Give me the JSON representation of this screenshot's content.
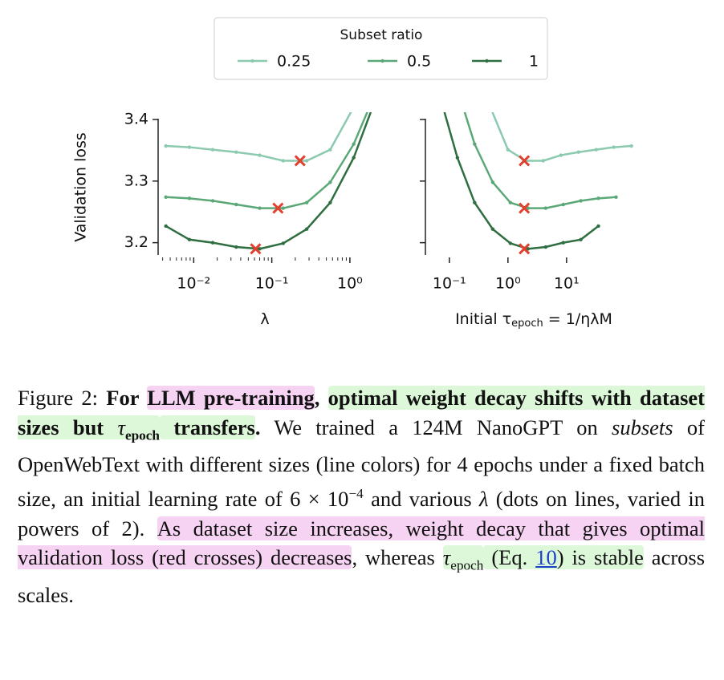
{
  "legend": {
    "title": "Subset ratio"
  },
  "chart_data": [
    {
      "type": "line",
      "ylabel": "Validation loss",
      "xlabel": [
        "λ"
      ],
      "xscale": "log",
      "xlim": [
        0.0035,
        1.9
      ],
      "ylim": [
        3.18,
        3.4
      ],
      "xticks": [
        {
          "value": 0.01,
          "label": "10⁻²"
        },
        {
          "value": 0.1,
          "label": "10⁻¹"
        },
        {
          "value": 1,
          "label": "10⁰"
        }
      ],
      "xticks_minor": [
        0.004,
        0.005,
        0.006,
        0.007,
        0.008,
        0.009,
        0.02,
        0.03,
        0.04,
        0.05,
        0.06,
        0.07,
        0.08,
        0.09,
        0.2,
        0.3,
        0.4,
        0.5,
        0.6,
        0.7,
        0.8,
        0.9
      ],
      "yticks": [
        3.2,
        3.3,
        3.4
      ],
      "show_ytick_labels": true,
      "series": [
        {
          "name": "0.25",
          "color": "#8ccab0",
          "x": [
            0.0044,
            0.0088,
            0.0175,
            0.035,
            0.07,
            0.14,
            0.28,
            0.56,
            1.12,
            2.24
          ],
          "values": [
            3.357,
            3.355,
            3.351,
            3.347,
            3.342,
            3.333,
            3.333,
            3.351,
            3.42,
            3.6
          ]
        },
        {
          "name": "0.5",
          "color": "#5aa877",
          "x": [
            0.0044,
            0.0088,
            0.0175,
            0.035,
            0.07,
            0.14,
            0.28,
            0.56,
            1.12,
            2.24
          ],
          "values": [
            3.274,
            3.272,
            3.268,
            3.262,
            3.256,
            3.256,
            3.265,
            3.298,
            3.36,
            3.45
          ]
        },
        {
          "name": "1",
          "color": "#2f6e40",
          "x": [
            0.0044,
            0.0088,
            0.0175,
            0.035,
            0.07,
            0.14,
            0.28,
            0.56,
            1.12,
            2.24
          ],
          "values": [
            3.227,
            3.205,
            3.2,
            3.193,
            3.19,
            3.199,
            3.222,
            3.265,
            3.338,
            3.44
          ]
        }
      ],
      "optima": {
        "color": "#e2402f",
        "x": [
          0.23,
          0.12,
          0.062
        ],
        "y": [
          3.333,
          3.256,
          3.19
        ]
      }
    },
    {
      "type": "line",
      "xlabel": [
        "Initial τ",
        "epoch",
        " = 1/ηλM"
      ],
      "xscale": "log",
      "xlim": [
        0.039,
        195
      ],
      "ylim": [
        3.18,
        3.4
      ],
      "xticks": [
        {
          "value": 0.1,
          "label": "10⁻¹"
        },
        {
          "value": 1,
          "label": "10⁰"
        },
        {
          "value": 10,
          "label": "10¹"
        }
      ],
      "yticks": [
        3.2,
        3.3,
        3.4
      ],
      "show_ytick_labels": false,
      "series": [
        {
          "color": "#8ccab0",
          "x": [
            0.25,
            0.5,
            1,
            2,
            4,
            8,
            16,
            32,
            64,
            128
          ],
          "values": [
            3.6,
            3.42,
            3.351,
            3.333,
            3.333,
            3.342,
            3.347,
            3.351,
            3.355,
            3.357
          ]
        },
        {
          "color": "#5aa877",
          "x": [
            0.137,
            0.27,
            0.55,
            1.1,
            2.2,
            4.4,
            8.8,
            17.5,
            35,
            70
          ],
          "values": [
            3.45,
            3.36,
            3.298,
            3.265,
            3.256,
            3.256,
            3.262,
            3.268,
            3.272,
            3.274
          ]
        },
        {
          "color": "#2f6e40",
          "x": [
            0.068,
            0.137,
            0.27,
            0.55,
            1.1,
            2.2,
            4.4,
            8.8,
            17.5,
            35
          ],
          "values": [
            3.44,
            3.338,
            3.265,
            3.222,
            3.199,
            3.19,
            3.193,
            3.2,
            3.205,
            3.227
          ]
        }
      ],
      "optima": {
        "color": "#e2402f",
        "x": [
          1.9,
          1.9,
          1.9
        ],
        "y": [
          3.333,
          3.256,
          3.19
        ]
      }
    }
  ],
  "caption": [
    "Figure 2: ",
    "For ",
    "LLM pre-training",
    ", ",
    "optimal weight decay shifts with dataset sizes but ",
    "τ",
    "epoch",
    " transfers",
    ".",
    " We trained a 124M NanoGPT on ",
    "subsets",
    " of OpenWebText with different sizes (line colors) for 4 epochs under a fixed batch size, an initial learning rate of 6 × 10",
    "−4",
    " and various ",
    "λ",
    " (dots on lines, varied in powers of 2).  ",
    "As dataset size increases, weight decay that gives optimal validation loss (red crosses) decreases",
    ", whereas ",
    "τ",
    "epoch",
    " (Eq. ",
    "10",
    ") is stable",
    " across scales."
  ]
}
